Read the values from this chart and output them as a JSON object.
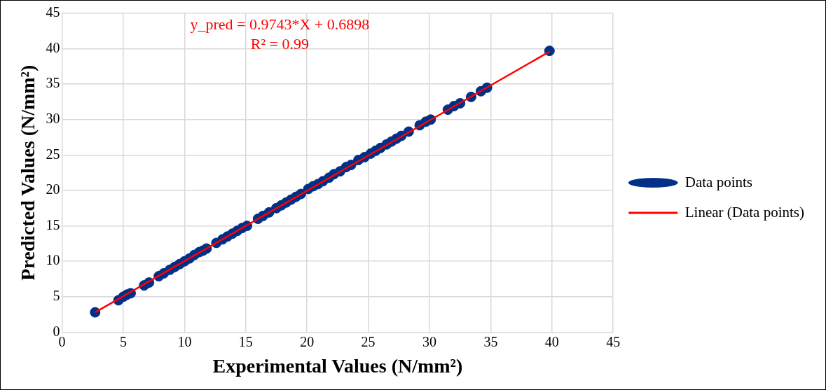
{
  "chart_data": {
    "type": "scatter",
    "xlabel": "Experimental Values (N/mm²)",
    "ylabel": "Predicted Values (N/mm²)",
    "annotations": [
      "y_pred = 0.9743*X + 0.6898",
      "R² = 0.99"
    ],
    "xlim": [
      0,
      45
    ],
    "ylim": [
      0,
      45
    ],
    "xticks": [
      0,
      5,
      10,
      15,
      20,
      25,
      30,
      35,
      40,
      45
    ],
    "yticks": [
      0,
      5,
      10,
      15,
      20,
      25,
      30,
      35,
      40,
      45
    ],
    "grid": true,
    "legend": "right",
    "series": [
      {
        "name": "Data points",
        "color": "#003087",
        "marker": "circle",
        "x": [
          2.7,
          4.6,
          5.0,
          5.3,
          5.6,
          6.7,
          7.1,
          7.9,
          8.3,
          8.8,
          9.2,
          9.6,
          10.0,
          10.4,
          10.8,
          11.2,
          11.5,
          11.8,
          12.6,
          13.1,
          13.5,
          13.9,
          14.3,
          14.7,
          15.1,
          16.0,
          16.4,
          16.9,
          17.5,
          17.9,
          18.3,
          18.7,
          19.1,
          19.5,
          20.1,
          20.5,
          20.9,
          21.3,
          21.8,
          22.2,
          22.7,
          23.2,
          23.6,
          24.2,
          24.7,
          25.2,
          25.6,
          26.0,
          26.5,
          26.9,
          27.3,
          27.7,
          28.3,
          29.2,
          29.7,
          30.1,
          31.5,
          32.0,
          32.5,
          33.4,
          34.2,
          34.7,
          39.8
        ],
        "values": [
          2.8,
          4.5,
          5.0,
          5.3,
          5.5,
          6.6,
          7.0,
          7.9,
          8.3,
          8.8,
          9.2,
          9.6,
          10.0,
          10.4,
          10.9,
          11.3,
          11.5,
          11.8,
          12.6,
          13.1,
          13.5,
          13.9,
          14.3,
          14.7,
          15.0,
          16.0,
          16.4,
          16.9,
          17.5,
          17.9,
          18.3,
          18.7,
          19.1,
          19.5,
          20.2,
          20.6,
          20.9,
          21.3,
          21.8,
          22.3,
          22.7,
          23.3,
          23.6,
          24.3,
          24.7,
          25.2,
          25.6,
          26.0,
          26.5,
          26.9,
          27.3,
          27.7,
          28.3,
          29.2,
          29.7,
          30.0,
          31.4,
          31.9,
          32.3,
          33.2,
          34.0,
          34.5,
          39.7
        ]
      },
      {
        "name": "Linear (Data points)",
        "type": "line",
        "marker": "none",
        "color": "#ff0000",
        "x": [
          2.7,
          39.8
        ],
        "values": [
          2.8,
          39.6
        ]
      }
    ]
  }
}
